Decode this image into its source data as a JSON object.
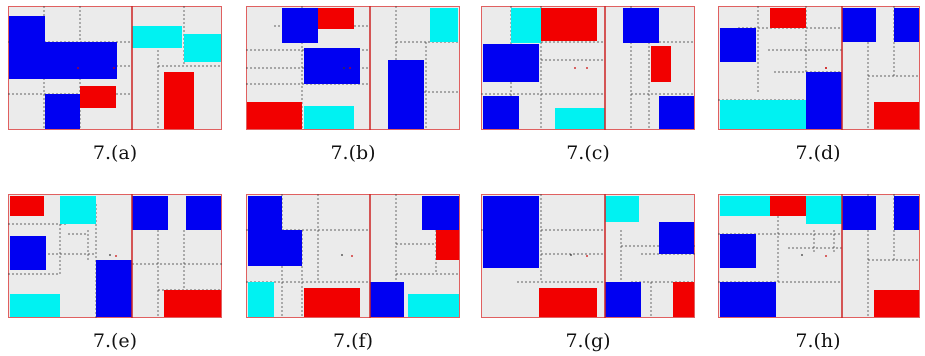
{
  "colors": {
    "background": "#ebebeb",
    "blue": "#0000f2",
    "red": "#f20000",
    "cyan": "#00f2f2",
    "frame": "#e06060",
    "divider": "#cc2222",
    "dash": "#333333",
    "dot": "#cc0000"
  },
  "figures": [
    {
      "caption": "7.(a)"
    },
    {
      "caption": "7.(b)"
    },
    {
      "caption": "7.(c)"
    },
    {
      "caption": "7.(d)"
    },
    {
      "caption": "7.(e)"
    },
    {
      "caption": "7.(f)"
    },
    {
      "caption": "7.(g)"
    },
    {
      "caption": "7.(h)"
    }
  ]
}
